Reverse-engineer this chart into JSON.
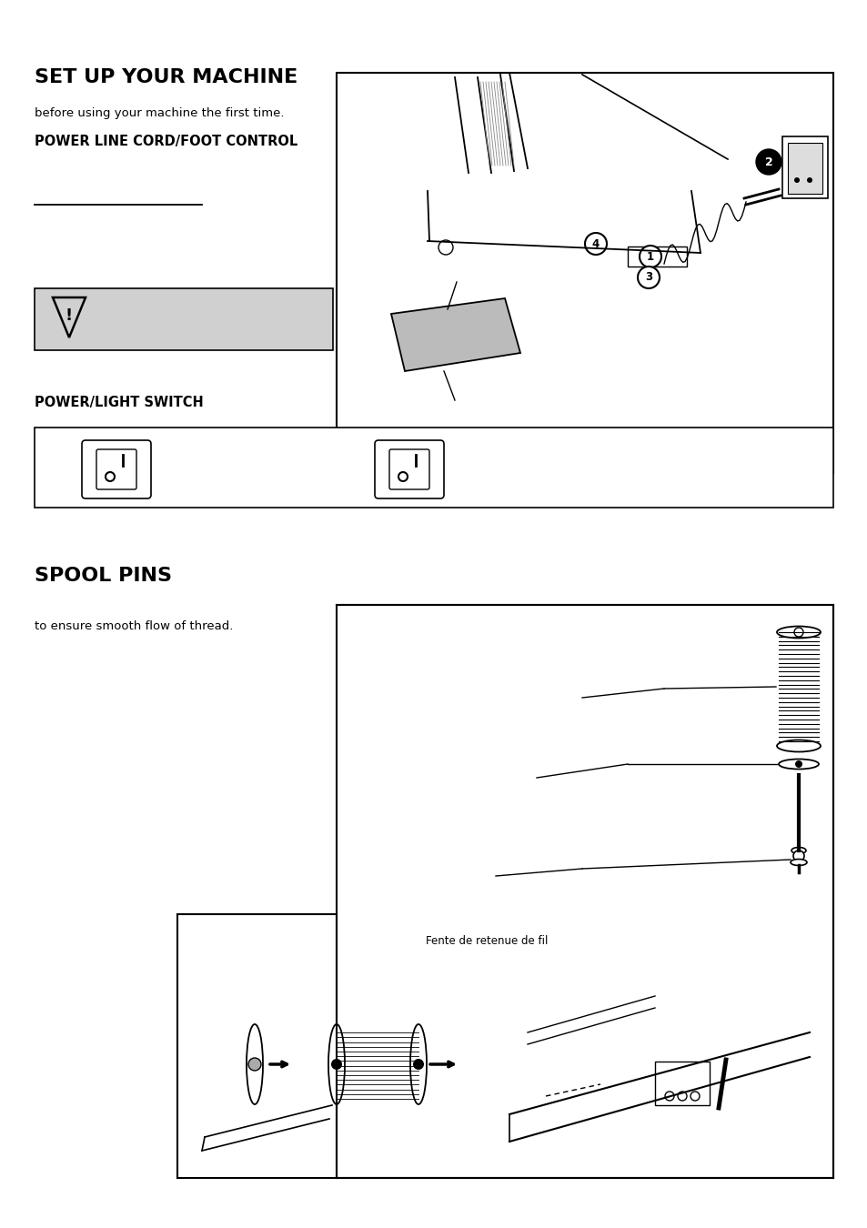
{
  "page_bg": "#ffffff",
  "title1": "SET UP YOUR MACHINE",
  "subtitle1": "before using your machine the first time.",
  "section1": "POWER LINE CORD/FOOT CONTROL",
  "section2": "POWER/LIGHT SWITCH",
  "section3": "SPOOL PINS",
  "sub_text1": "to ensure smooth flow of thread.",
  "label_fente": "Fente de retenue de fil",
  "fig_width": 9.54,
  "fig_height": 13.5,
  "dpi": 100
}
